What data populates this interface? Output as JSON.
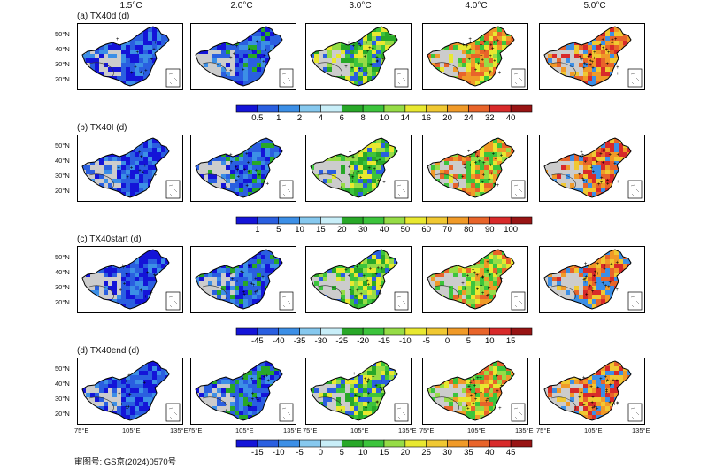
{
  "column_headers": [
    "1.5°C",
    "2.0°C",
    "3.0°C",
    "4.0°C",
    "5.0°C"
  ],
  "rows": [
    {
      "title": "(a) TX40d (d)",
      "colorbar": {
        "labels": [
          "0.5",
          "1",
          "2",
          "4",
          "6",
          "8",
          "10",
          "14",
          "16",
          "20",
          "24",
          "32",
          "40"
        ],
        "colors": [
          "#1414d8",
          "#2a5fe0",
          "#3c8fe6",
          "#86c8ee",
          "#c8eef8",
          "#28a828",
          "#3cc43c",
          "#96dc46",
          "#e8e830",
          "#f0c832",
          "#f09a28",
          "#e8642a",
          "#d82a2a",
          "#981414"
        ]
      }
    },
    {
      "title": "(b) TX40I (d)",
      "colorbar": {
        "labels": [
          "1",
          "5",
          "10",
          "15",
          "20",
          "30",
          "40",
          "50",
          "60",
          "70",
          "80",
          "90",
          "100"
        ],
        "colors": [
          "#1414d8",
          "#2a5fe0",
          "#3c8fe6",
          "#86c8ee",
          "#c8eef8",
          "#28a828",
          "#3cc43c",
          "#96dc46",
          "#e8e830",
          "#f0c832",
          "#f09a28",
          "#e8642a",
          "#d82a2a",
          "#981414"
        ]
      }
    },
    {
      "title": "(c) TX40start (d)",
      "colorbar": {
        "labels": [
          "-45",
          "-40",
          "-35",
          "-30",
          "-25",
          "-20",
          "-15",
          "-10",
          "-5",
          "0",
          "5",
          "10",
          "15"
        ],
        "colors": [
          "#1414d8",
          "#2a5fe0",
          "#3c8fe6",
          "#86c8ee",
          "#c8eef8",
          "#28a828",
          "#3cc43c",
          "#96dc46",
          "#e8e830",
          "#f0c832",
          "#f09a28",
          "#e8642a",
          "#d82a2a",
          "#981414"
        ]
      }
    },
    {
      "title": "(d) TX40end (d)",
      "colorbar": {
        "labels": [
          "-15",
          "-10",
          "-5",
          "0",
          "5",
          "10",
          "15",
          "20",
          "25",
          "30",
          "35",
          "40",
          "45"
        ],
        "colors": [
          "#1414d8",
          "#2a5fe0",
          "#3c8fe6",
          "#86c8ee",
          "#c8eef8",
          "#28a828",
          "#3cc43c",
          "#96dc46",
          "#e8e830",
          "#f0c832",
          "#f09a28",
          "#e8642a",
          "#d82a2a",
          "#981414"
        ]
      }
    }
  ],
  "panel_palettes": [
    [
      "#1414d8",
      "#2a5fe0",
      "#1414d8",
      "#2a5fe0",
      "#3c8fe6"
    ],
    [
      "#1414d8",
      "#2a5fe0",
      "#3c8fe6",
      "#28a828",
      "#2a5fe0"
    ],
    [
      "#3cc43c",
      "#28a828",
      "#96dc46",
      "#e8e830",
      "#2a5fe0"
    ],
    [
      "#3cc43c",
      "#96dc46",
      "#e8e830",
      "#f09a28",
      "#e8642a"
    ],
    [
      "#e8642a",
      "#d82a2a",
      "#f09a28",
      "#f0c832",
      "#3c8fe6"
    ]
  ],
  "lat_labels": [
    "50°N",
    "40°N",
    "30°N",
    "20°N"
  ],
  "lon_labels": [
    "75°E",
    "105°E",
    "135°E"
  ],
  "footnote": "审图号: GS京(2024)0570号"
}
